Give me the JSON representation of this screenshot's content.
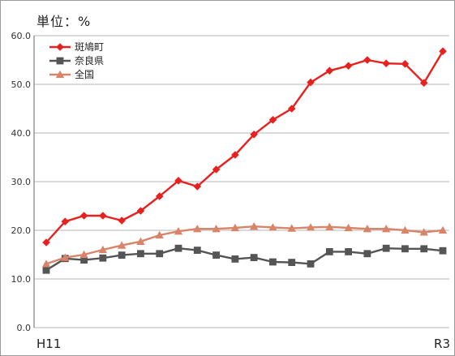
{
  "chart_data": {
    "type": "line",
    "unit_label": "単位：%",
    "ylim": [
      0,
      60
    ],
    "yticks": [
      "0.0",
      "10.0",
      "20.0",
      "30.0",
      "40.0",
      "50.0",
      "60.0"
    ],
    "x_first_label": "H11",
    "x_last_label": "R3",
    "grid": true,
    "legend_placement": "top-left",
    "series": [
      {
        "name": "斑鳩町",
        "color": "#e8201e",
        "marker": "diamond",
        "values": [
          17.5,
          21.8,
          23.0,
          23.0,
          22.0,
          24.0,
          27.0,
          30.2,
          29.0,
          32.5,
          35.5,
          39.7,
          42.7,
          45.0,
          50.4,
          52.8,
          53.8,
          55.0,
          54.3,
          54.2,
          50.3,
          56.8
        ]
      },
      {
        "name": "奈良県",
        "color": "#555555",
        "marker": "square",
        "values": [
          11.8,
          14.2,
          13.9,
          14.3,
          14.9,
          15.2,
          15.2,
          16.3,
          15.9,
          14.9,
          14.1,
          14.4,
          13.5,
          13.4,
          13.1,
          15.6,
          15.6,
          15.2,
          16.3,
          16.2,
          16.2,
          15.8
        ]
      },
      {
        "name": "全国",
        "color": "#d98468",
        "marker": "triangle",
        "values": [
          13.1,
          14.4,
          15.0,
          16.0,
          16.9,
          17.7,
          19.0,
          19.8,
          20.3,
          20.3,
          20.5,
          20.8,
          20.6,
          20.4,
          20.6,
          20.7,
          20.5,
          20.3,
          20.3,
          20.0,
          19.6,
          20.0
        ]
      }
    ]
  }
}
